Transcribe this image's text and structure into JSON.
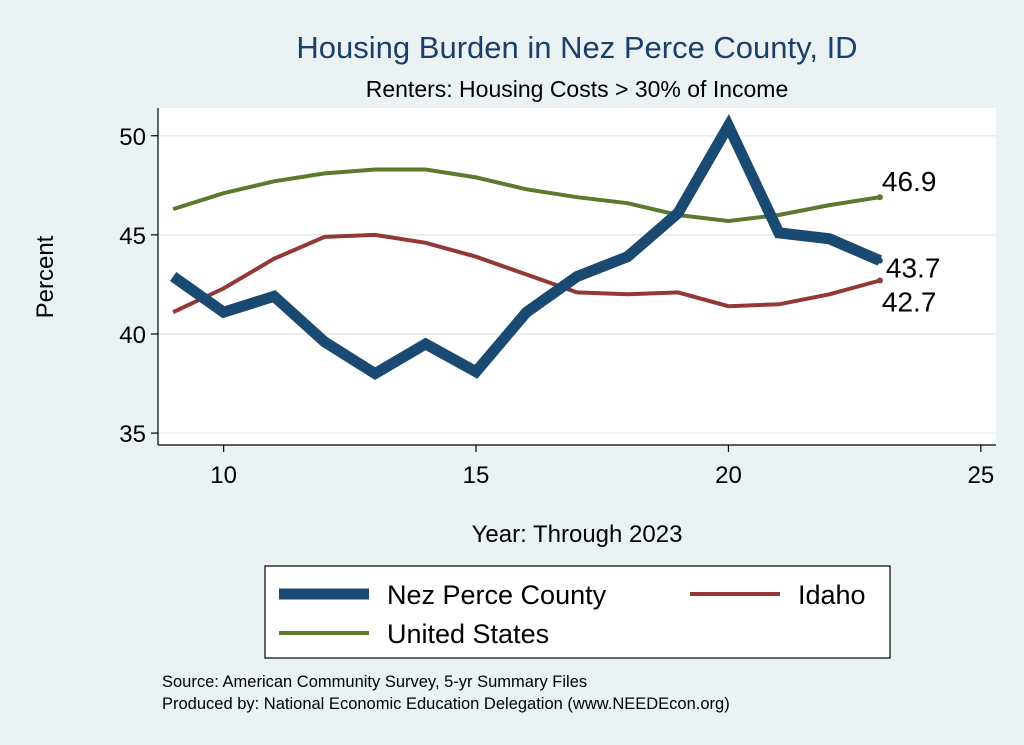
{
  "chart_data": {
    "type": "line",
    "title": "Housing Burden in Nez Perce County, ID",
    "subtitle": "Renters: Housing Costs > 30% of Income",
    "xlabel": "Year: Through 2023",
    "ylabel": "Percent",
    "xlim": [
      8.7,
      25.3
    ],
    "ylim": [
      34.4,
      51.4
    ],
    "xticks": [
      10,
      15,
      20,
      25
    ],
    "yticks": [
      35,
      40,
      45,
      50
    ],
    "grid": true,
    "legend_position": "bottom",
    "series": [
      {
        "name": "Nez Perce County",
        "color": "#1a4a72",
        "x": [
          9,
          10,
          11,
          12,
          13,
          14,
          15,
          16,
          17,
          18,
          19,
          20,
          21,
          22,
          23
        ],
        "values": [
          42.9,
          41.1,
          41.9,
          39.6,
          38.0,
          39.5,
          38.1,
          41.1,
          42.9,
          43.9,
          46.1,
          50.5,
          45.1,
          44.8,
          43.7
        ],
        "end_label": "43.7"
      },
      {
        "name": "Idaho",
        "color": "#933838",
        "x": [
          9,
          10,
          11,
          12,
          13,
          14,
          15,
          16,
          17,
          18,
          19,
          20,
          21,
          22,
          23
        ],
        "values": [
          41.1,
          42.3,
          43.8,
          44.9,
          45.0,
          44.6,
          43.9,
          43.0,
          42.1,
          42.0,
          42.1,
          41.4,
          41.5,
          42.0,
          42.7
        ],
        "end_label": "42.7"
      },
      {
        "name": "United States",
        "color": "#5a7a2e",
        "x": [
          9,
          10,
          11,
          12,
          13,
          14,
          15,
          16,
          17,
          18,
          19,
          20,
          21,
          22,
          23
        ],
        "values": [
          46.3,
          47.1,
          47.7,
          48.1,
          48.3,
          48.3,
          47.9,
          47.3,
          46.9,
          46.6,
          46.0,
          45.7,
          46.0,
          46.5,
          46.9
        ],
        "end_label": "46.9"
      }
    ]
  },
  "footer": {
    "source": "Source: American Community Survey, 5-yr Summary Files",
    "produced_by": "Produced by: National Economic Education Delegation (www.NEEDEcon.org)"
  }
}
